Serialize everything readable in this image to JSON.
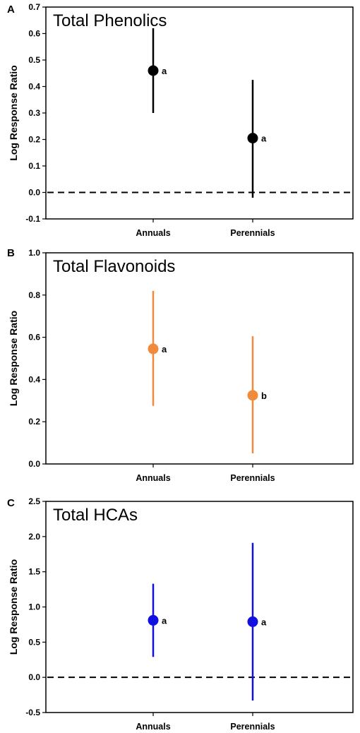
{
  "chart_data": [
    {
      "panel": "A",
      "type": "scatter",
      "title": "Total Phenolics",
      "ylabel": "Log Response Ratio",
      "xlabel": "",
      "categories": [
        "Annuals",
        "Perennials"
      ],
      "ylim": [
        -0.1,
        0.7
      ],
      "yticks": [
        -0.1,
        0.0,
        0.1,
        0.2,
        0.3,
        0.4,
        0.5,
        0.6,
        0.7
      ],
      "ytick_labels": [
        "-0.1",
        "0.0",
        "0.1",
        "0.2",
        "0.3",
        "0.4",
        "0.5",
        "0.6",
        "0.7"
      ],
      "reference_line": 0.0,
      "color": "#000000",
      "points": [
        {
          "category": "Annuals",
          "value": 0.46,
          "ci_low": 0.3,
          "ci_high": 0.62,
          "letter": "a"
        },
        {
          "category": "Perennials",
          "value": 0.205,
          "ci_low": -0.02,
          "ci_high": 0.425,
          "letter": "a"
        }
      ]
    },
    {
      "panel": "B",
      "type": "scatter",
      "title": "Total Flavonoids",
      "ylabel": "Log Response Ratio",
      "xlabel": "",
      "categories": [
        "Annuals",
        "Perennials"
      ],
      "ylim": [
        0.0,
        1.0
      ],
      "yticks": [
        0.0,
        0.2,
        0.4,
        0.6,
        0.8,
        1.0
      ],
      "ytick_labels": [
        "0.0",
        "0.2",
        "0.4",
        "0.6",
        "0.8",
        "1.0"
      ],
      "reference_line": null,
      "color": "#f28a3c",
      "points": [
        {
          "category": "Annuals",
          "value": 0.545,
          "ci_low": 0.275,
          "ci_high": 0.82,
          "letter": "a"
        },
        {
          "category": "Perennials",
          "value": 0.325,
          "ci_low": 0.05,
          "ci_high": 0.605,
          "letter": "b"
        }
      ]
    },
    {
      "panel": "C",
      "type": "scatter",
      "title": "Total HCAs",
      "ylabel": "Log Response Ratio",
      "xlabel": "",
      "categories": [
        "Annuals",
        "Perennials"
      ],
      "ylim": [
        -0.5,
        2.5
      ],
      "yticks": [
        -0.5,
        0.0,
        0.5,
        1.0,
        1.5,
        2.0,
        2.5
      ],
      "ytick_labels": [
        "-0.5",
        "0.0",
        "0.5",
        "1.0",
        "1.5",
        "2.0",
        "2.5"
      ],
      "reference_line": 0.0,
      "color": "#1010e0",
      "points": [
        {
          "category": "Annuals",
          "value": 0.81,
          "ci_low": 0.29,
          "ci_high": 1.33,
          "letter": "a"
        },
        {
          "category": "Perennials",
          "value": 0.79,
          "ci_low": -0.33,
          "ci_high": 1.91,
          "letter": "a"
        }
      ]
    }
  ]
}
